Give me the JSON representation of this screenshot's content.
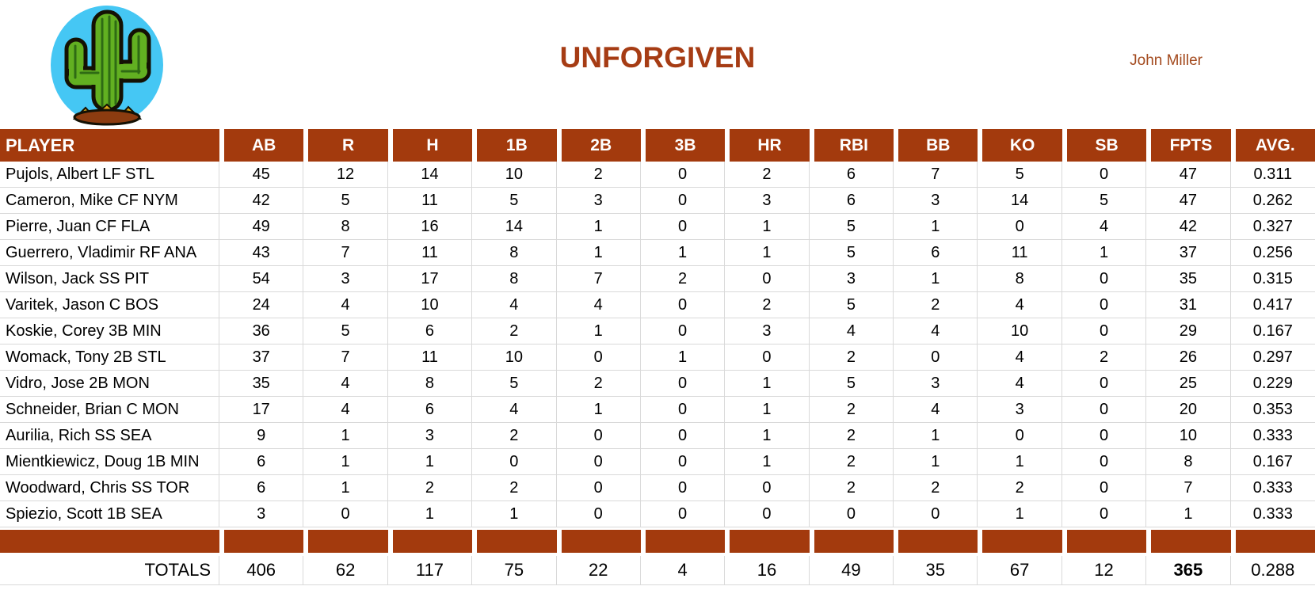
{
  "page": {
    "title": "UNFORGIVEN",
    "owner": "John Miller"
  },
  "logo": {
    "icon": "cactus-logo",
    "colors": {
      "circle_blue": "#45C7F4",
      "cactus_green": "#62B021",
      "cactus_dark_green": "#2F6B14",
      "dirt_brown": "#8C3C10",
      "grass_yellow": "#D9A617"
    }
  },
  "colors": {
    "header_bg": "#A33A0D",
    "title_text": "#A63C14",
    "owner_text": "#A34A1E",
    "gridline": "#D9D9D9"
  },
  "table": {
    "columns": [
      "PLAYER",
      "AB",
      "R",
      "H",
      "1B",
      "2B",
      "3B",
      "HR",
      "RBI",
      "BB",
      "KO",
      "SB",
      "FPTS",
      "AVG."
    ],
    "rows": [
      {
        "player": "Pujols, Albert LF STL",
        "stats": [
          45,
          12,
          14,
          10,
          2,
          0,
          2,
          6,
          7,
          5,
          0,
          47,
          "0.311"
        ]
      },
      {
        "player": "Cameron, Mike CF NYM",
        "stats": [
          42,
          5,
          11,
          5,
          3,
          0,
          3,
          6,
          3,
          14,
          5,
          47,
          "0.262"
        ]
      },
      {
        "player": "Pierre, Juan CF FLA",
        "stats": [
          49,
          8,
          16,
          14,
          1,
          0,
          1,
          5,
          1,
          0,
          4,
          42,
          "0.327"
        ]
      },
      {
        "player": "Guerrero, Vladimir RF ANA",
        "stats": [
          43,
          7,
          11,
          8,
          1,
          1,
          1,
          5,
          6,
          11,
          1,
          37,
          "0.256"
        ]
      },
      {
        "player": "Wilson, Jack SS PIT",
        "stats": [
          54,
          3,
          17,
          8,
          7,
          2,
          0,
          3,
          1,
          8,
          0,
          35,
          "0.315"
        ]
      },
      {
        "player": "Varitek, Jason C BOS",
        "stats": [
          24,
          4,
          10,
          4,
          4,
          0,
          2,
          5,
          2,
          4,
          0,
          31,
          "0.417"
        ]
      },
      {
        "player": "Koskie, Corey 3B MIN",
        "stats": [
          36,
          5,
          6,
          2,
          1,
          0,
          3,
          4,
          4,
          10,
          0,
          29,
          "0.167"
        ]
      },
      {
        "player": "Womack, Tony 2B STL",
        "stats": [
          37,
          7,
          11,
          10,
          0,
          1,
          0,
          2,
          0,
          4,
          2,
          26,
          "0.297"
        ]
      },
      {
        "player": "Vidro, Jose 2B MON",
        "stats": [
          35,
          4,
          8,
          5,
          2,
          0,
          1,
          5,
          3,
          4,
          0,
          25,
          "0.229"
        ]
      },
      {
        "player": "Schneider, Brian C MON",
        "stats": [
          17,
          4,
          6,
          4,
          1,
          0,
          1,
          2,
          4,
          3,
          0,
          20,
          "0.353"
        ]
      },
      {
        "player": "Aurilia, Rich SS SEA",
        "stats": [
          9,
          1,
          3,
          2,
          0,
          0,
          1,
          2,
          1,
          0,
          0,
          10,
          "0.333"
        ]
      },
      {
        "player": "Mientkiewicz, Doug 1B MIN",
        "stats": [
          6,
          1,
          1,
          0,
          0,
          0,
          1,
          2,
          1,
          1,
          0,
          8,
          "0.167"
        ]
      },
      {
        "player": "Woodward, Chris SS TOR",
        "stats": [
          6,
          1,
          2,
          2,
          0,
          0,
          0,
          2,
          2,
          2,
          0,
          7,
          "0.333"
        ]
      },
      {
        "player": "Spiezio, Scott 1B SEA",
        "stats": [
          3,
          0,
          1,
          1,
          0,
          0,
          0,
          0,
          0,
          1,
          0,
          1,
          "0.333"
        ]
      }
    ],
    "totals": {
      "label": "TOTALS",
      "stats": [
        406,
        62,
        117,
        75,
        22,
        4,
        16,
        49,
        35,
        67,
        12,
        365,
        "0.288"
      ]
    }
  }
}
